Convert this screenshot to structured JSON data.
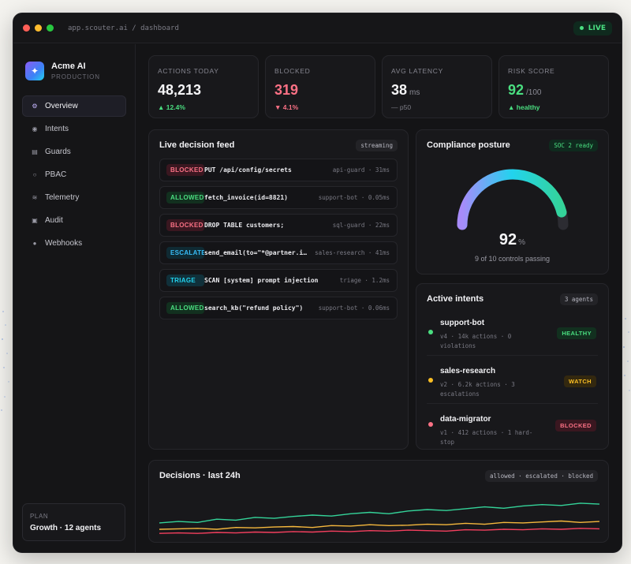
{
  "window": {
    "url": "app.scouter.ai / dashboard",
    "live_label": "LIVE"
  },
  "org": {
    "name": "Acme AI",
    "env": "PRODUCTION"
  },
  "nav": [
    {
      "label": "Overview",
      "icon": "gear-icon",
      "glyph": "⚙"
    },
    {
      "label": "Intents",
      "icon": "target-icon",
      "glyph": "◉"
    },
    {
      "label": "Guards",
      "icon": "shield-icon",
      "glyph": "▤"
    },
    {
      "label": "PBAC",
      "icon": "key-icon",
      "glyph": "○"
    },
    {
      "label": "Telemetry",
      "icon": "signal-icon",
      "glyph": "≋"
    },
    {
      "label": "Audit",
      "icon": "clipboard-icon",
      "glyph": "▣"
    },
    {
      "label": "Webhooks",
      "icon": "hook-icon",
      "glyph": "●"
    }
  ],
  "plan": {
    "label": "PLAN",
    "value": "Growth · 12 agents"
  },
  "stats": [
    {
      "label": "ACTIONS TODAY",
      "value": "48,213",
      "unit": "",
      "delta": "▲ 12.4%",
      "delta_type": "up"
    },
    {
      "label": "BLOCKED",
      "value": "319",
      "unit": "",
      "delta": "▼ 4.1%",
      "delta_type": "down"
    },
    {
      "label": "AVG LATENCY",
      "value": "38",
      "unit": "ms",
      "delta": "— p50",
      "delta_type": "muted"
    },
    {
      "label": "RISK SCORE",
      "value": "92",
      "unit": "/100",
      "delta": "▲ healthy",
      "delta_type": "up"
    }
  ],
  "feed": {
    "title": "Live decision feed",
    "chip": "streaming",
    "rows": [
      {
        "badge": "BLOCKED",
        "type": "blocked",
        "cmd": "PUT /api/config/secrets",
        "meta": "api-guard · 31ms"
      },
      {
        "badge": "ALLOWED",
        "type": "allowed",
        "cmd": "fetch_invoice(id=8821)",
        "meta": "support-bot · 0.05ms"
      },
      {
        "badge": "BLOCKED",
        "type": "blocked",
        "cmd": "DROP TABLE customers;",
        "meta": "sql-guard · 22ms"
      },
      {
        "badge": "ESCALATE",
        "type": "escalate",
        "cmd": "send_email(to=\"*@partner.io\")",
        "meta": "sales-research · 41ms"
      },
      {
        "badge": "TRIAGE",
        "type": "triage",
        "cmd": "SCAN [system] prompt injection",
        "meta": "triage · 1.2ms"
      },
      {
        "badge": "ALLOWED",
        "type": "allowed",
        "cmd": "search_kb(\"refund policy\")",
        "meta": "support-bot · 0.06ms"
      }
    ]
  },
  "compliance": {
    "title": "Compliance posture",
    "chip": "SOC 2 ready",
    "value": "92",
    "unit": "%",
    "fraction": 0.92,
    "caption": "9 of 10 controls passing"
  },
  "intents": {
    "title": "Active intents",
    "chip": "3 agents",
    "items": [
      {
        "name": "support-bot",
        "meta": "v4 · 14k actions · 0 violations",
        "badge": "HEALTHY",
        "type": "healthy",
        "color": "#4ade80"
      },
      {
        "name": "sales-research",
        "meta": "v2 · 6.2k actions · 3 escalations",
        "badge": "WATCH",
        "type": "watch",
        "color": "#fbbf24"
      },
      {
        "name": "data-migrator",
        "meta": "v1 · 412 actions · 1 hard-stop",
        "badge": "BLOCKED",
        "type": "blocked",
        "color": "#fb7185"
      }
    ]
  },
  "decisions": {
    "title": "Decisions · last 24h",
    "chip": "allowed · escalated · blocked"
  },
  "chart_data": {
    "type": "line",
    "x": [
      0,
      1,
      2,
      3,
      4,
      5,
      6,
      7,
      8,
      9,
      10,
      11,
      12,
      13,
      14,
      15,
      16,
      17,
      18,
      19,
      20,
      21,
      22,
      23
    ],
    "series": [
      {
        "color": "#34d399",
        "values": [
          0.18,
          0.21,
          0.19,
          0.26,
          0.24,
          0.3,
          0.28,
          0.32,
          0.35,
          0.33,
          0.38,
          0.41,
          0.38,
          0.44,
          0.47,
          0.45,
          0.49,
          0.53,
          0.5,
          0.55,
          0.58,
          0.56,
          0.61,
          0.59
        ]
      },
      {
        "color": "#f5b83d",
        "values": [
          0.04,
          0.05,
          0.06,
          0.04,
          0.08,
          0.07,
          0.09,
          0.1,
          0.08,
          0.12,
          0.11,
          0.14,
          0.12,
          0.13,
          0.15,
          0.14,
          0.17,
          0.15,
          0.19,
          0.18,
          0.2,
          0.22,
          0.19,
          0.21
        ]
      },
      {
        "color": "#f43f5e",
        "values": [
          -0.05,
          -0.04,
          -0.05,
          -0.03,
          -0.04,
          -0.02,
          -0.03,
          -0.01,
          -0.02,
          0.0,
          -0.01,
          0.01,
          0.0,
          0.02,
          0.01,
          0.0,
          0.03,
          0.02,
          0.04,
          0.03,
          0.05,
          0.04,
          0.06,
          0.05
        ]
      }
    ],
    "ylim": [
      -0.15,
      0.85
    ]
  }
}
